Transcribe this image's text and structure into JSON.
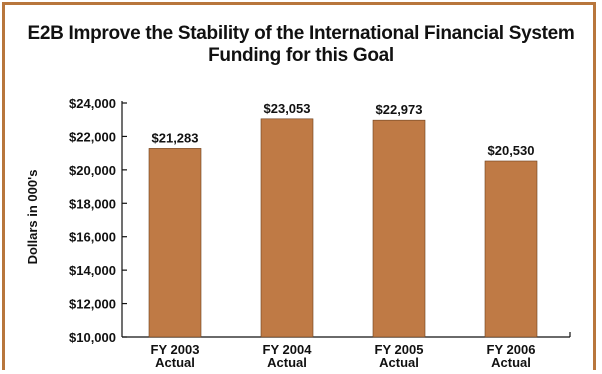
{
  "chart_data": {
    "type": "bar",
    "title": "E2B Improve the Stability of the International Financial System",
    "subtitle": "Funding for this Goal",
    "xlabel": "",
    "ylabel": "Dollars in 000's",
    "categories": [
      [
        "FY 2003",
        "Actual"
      ],
      [
        "FY 2004",
        "Actual"
      ],
      [
        "FY 2005",
        "Actual"
      ],
      [
        "FY 2006",
        "Actual"
      ]
    ],
    "values": [
      21283,
      23053,
      22973,
      20530
    ],
    "value_labels": [
      "$21,283",
      "$23,053",
      "$22,973",
      "$20,530"
    ],
    "ylim": [
      10000,
      24000
    ],
    "yticks": [
      10000,
      12000,
      14000,
      16000,
      18000,
      20000,
      22000,
      24000
    ],
    "ytick_labels": [
      "$10,000",
      "$12,000",
      "$14,000",
      "$16,000",
      "$18,000",
      "$20,000",
      "$22,000",
      "$24,000"
    ],
    "grid": false,
    "legend": "none",
    "bar_color": "#bf7a45",
    "bar_stroke": "#6b3f1c",
    "frame_color": "#b8763c"
  }
}
